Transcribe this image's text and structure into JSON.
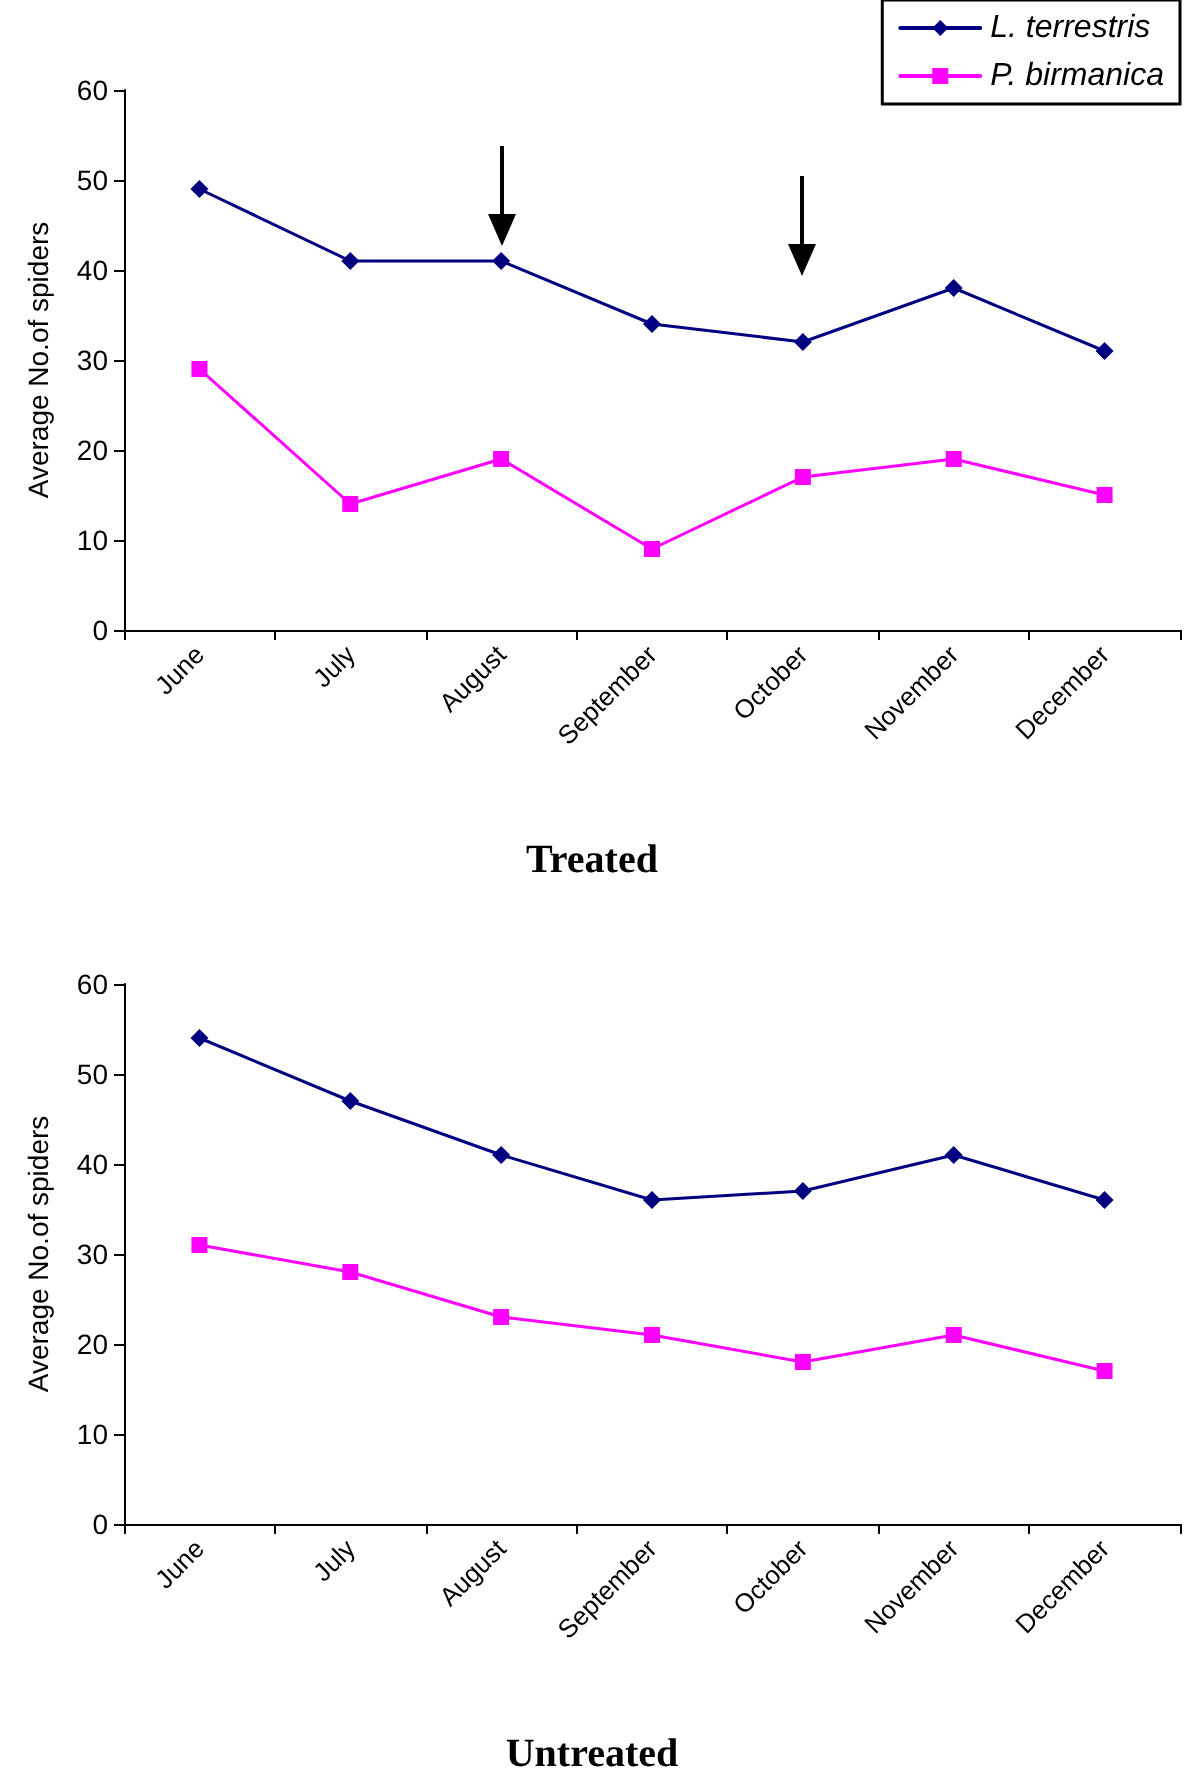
{
  "chart_data": [
    {
      "type": "line",
      "title": "Treated",
      "ylabel": "Average No.of spiders",
      "categories": [
        "June",
        "July",
        "August",
        "September",
        "October",
        "November",
        "December"
      ],
      "series": [
        {
          "name": "L. terrestris",
          "color": "#000080",
          "marker": "diamond",
          "values": [
            49,
            41,
            41,
            34,
            32,
            38,
            31
          ]
        },
        {
          "name": "P. birmanica",
          "color": "#ff00ff",
          "marker": "square",
          "values": [
            29,
            14,
            19,
            9,
            17,
            19,
            15
          ]
        }
      ],
      "ylim": [
        0,
        60
      ],
      "yticks": [
        0,
        10,
        20,
        30,
        40,
        50,
        60
      ],
      "grid": false,
      "legend": "top right"
    },
    {
      "type": "line",
      "title": "Untreated",
      "ylabel": "Average No.of spiders",
      "categories": [
        "June",
        "July",
        "August",
        "September",
        "October",
        "November",
        "December"
      ],
      "series": [
        {
          "color": "#000080",
          "marker": "diamond",
          "values": [
            54,
            47,
            41,
            36,
            37,
            41,
            36
          ]
        },
        {
          "color": "#ff00ff",
          "marker": "square",
          "values": [
            31,
            28,
            23,
            21,
            18,
            21,
            17
          ]
        }
      ],
      "ylim": [
        0,
        60
      ],
      "yticks": [
        0,
        10,
        20,
        30,
        40,
        50,
        60
      ],
      "grid": false,
      "legend": false
    }
  ]
}
